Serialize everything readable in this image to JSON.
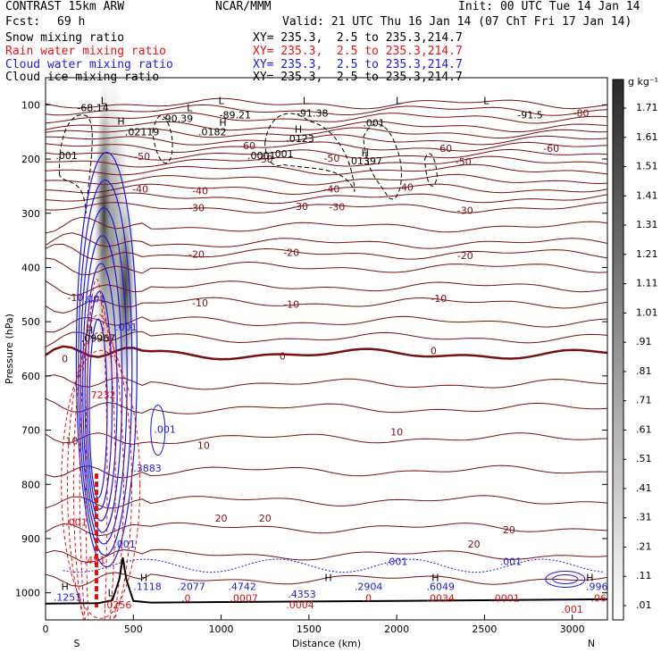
{
  "header": {
    "model": "CONTRAST 15km ARW",
    "org": "NCAR/MMM",
    "init": "Init: 00 UTC Tue 14 Jan 14",
    "fcst_label": "Fcst:",
    "fcst_value": "69 h",
    "valid": "Valid: 21 UTC Thu 16 Jan 14 (07 ChT Fri 17 Jan 14)"
  },
  "legend": [
    {
      "label": "Snow mixing ratio",
      "xy": "XY= 235.3,  2.5 to 235.3,214.7",
      "color": "#000000"
    },
    {
      "label": "Rain water mixing ratio",
      "xy": "XY= 235.3,  2.5 to 235.3,214.7",
      "color": "#e01010"
    },
    {
      "label": "Cloud water mixing ratio",
      "xy": "XY= 235.3,  2.5 to 235.3,214.7",
      "color": "#1a1ae6"
    },
    {
      "label": "Cloud ice mixing ratio",
      "xy": "XY= 235.3,  2.5 to 235.3,214.7",
      "color": "#000000"
    }
  ],
  "colorbar": {
    "unit": "g kg⁻¹",
    "ticks": [
      "1.71",
      "1.61",
      "1.51",
      "1.41",
      "1.31",
      "1.21",
      "1.11",
      "1.01",
      ".91",
      ".81",
      ".71",
      ".61",
      ".51",
      ".41",
      ".31",
      ".21",
      ".11",
      ".01"
    ]
  },
  "chart_data": {
    "type": "cross-section",
    "xlabel": "Distance (km)",
    "ylabel": "Pressure (hPa)",
    "xlim": [
      0,
      3200
    ],
    "ylim": [
      1050,
      50
    ],
    "x_ticks": [
      0,
      500,
      1000,
      1500,
      2000,
      2500,
      3000
    ],
    "y_ticks": [
      100,
      200,
      300,
      400,
      500,
      600,
      700,
      800,
      900,
      1000
    ],
    "end_labels": {
      "left": "S",
      "right": "N"
    },
    "temperature_contours": {
      "color": "#7a1010",
      "levels": [
        -80,
        -70,
        -60,
        -50,
        -40,
        -30,
        -20,
        -10,
        0,
        10,
        20
      ],
      "labels": [
        {
          "text": "-80",
          "x": 3050,
          "p": 115
        },
        {
          "text": "-60",
          "x": 2880,
          "p": 180
        },
        {
          "text": "-60",
          "x": 1150,
          "p": 175
        },
        {
          "text": "-60",
          "x": 2270,
          "p": 180
        },
        {
          "text": "-50",
          "x": 550,
          "p": 195
        },
        {
          "text": "-50",
          "x": 1250,
          "p": 200
        },
        {
          "text": "-50",
          "x": 1630,
          "p": 198
        },
        {
          "text": "-50",
          "x": 2380,
          "p": 205
        },
        {
          "text": "-40",
          "x": 540,
          "p": 255
        },
        {
          "text": "-40",
          "x": 880,
          "p": 258
        },
        {
          "text": "-40",
          "x": 1630,
          "p": 255
        },
        {
          "text": "-40",
          "x": 2050,
          "p": 252
        },
        {
          "text": "-30",
          "x": 860,
          "p": 290
        },
        {
          "text": "-30",
          "x": 1450,
          "p": 287
        },
        {
          "text": "-30",
          "x": 1660,
          "p": 288
        },
        {
          "text": "-30",
          "x": 2390,
          "p": 295
        },
        {
          "text": "-20",
          "x": 860,
          "p": 375
        },
        {
          "text": "-20",
          "x": 1400,
          "p": 372
        },
        {
          "text": "-20",
          "x": 2390,
          "p": 378
        },
        {
          "text": "-10",
          "x": 170,
          "p": 455
        },
        {
          "text": "-10",
          "x": 880,
          "p": 465
        },
        {
          "text": "-10",
          "x": 1400,
          "p": 468
        },
        {
          "text": "-10",
          "x": 2240,
          "p": 457
        },
        {
          "text": "0",
          "x": 110,
          "p": 568
        },
        {
          "text": "0",
          "x": 1350,
          "p": 563
        },
        {
          "text": "0",
          "x": 2210,
          "p": 553
        },
        {
          "text": "10",
          "x": 150,
          "p": 720
        },
        {
          "text": "10",
          "x": 900,
          "p": 728
        },
        {
          "text": "10",
          "x": 2000,
          "p": 703
        },
        {
          "text": "20",
          "x": 1000,
          "p": 862
        },
        {
          "text": "20",
          "x": 1250,
          "p": 862
        },
        {
          "text": "20",
          "x": 2440,
          "p": 910
        },
        {
          "text": "20",
          "x": 2640,
          "p": 884
        }
      ]
    },
    "annotations": [
      {
        "text": "-68.14",
        "x": 270,
        "p": 105,
        "color": "#000"
      },
      {
        "text": "-90.39",
        "x": 750,
        "p": 125,
        "color": "#000"
      },
      {
        "text": "-89.21",
        "x": 1080,
        "p": 118,
        "color": "#000"
      },
      {
        "text": "-91.38",
        "x": 1520,
        "p": 115,
        "color": "#000"
      },
      {
        "text": "-91.5",
        "x": 2760,
        "p": 118,
        "color": "#000"
      },
      {
        "text": ".001",
        "x": 1870,
        "p": 133,
        "color": "#000"
      },
      {
        "text": ".02119",
        "x": 550,
        "p": 150,
        "color": "#000"
      },
      {
        "text": ".0182",
        "x": 950,
        "p": 150,
        "color": "#000"
      },
      {
        "text": ".0123",
        "x": 1450,
        "p": 162,
        "color": "#000"
      },
      {
        "text": ".001",
        "x": 1350,
        "p": 190,
        "color": "#000"
      },
      {
        "text": ".01397",
        "x": 1820,
        "p": 203,
        "color": "#000"
      },
      {
        "text": ".001",
        "x": 120,
        "p": 193,
        "color": "#000"
      },
      {
        "text": ".0001",
        "x": 1230,
        "p": 193,
        "color": "#000"
      },
      {
        "text": ".09967",
        "x": 300,
        "p": 530,
        "color": "#000"
      },
      {
        "text": ".001",
        "x": 280,
        "p": 458,
        "color": "#1a1ae6"
      },
      {
        "text": ".001",
        "x": 460,
        "p": 510,
        "color": "#1a1ae6"
      },
      {
        "text": ".001",
        "x": 680,
        "p": 698,
        "color": "#1a1ae6"
      },
      {
        "text": ".3883",
        "x": 580,
        "p": 770,
        "color": "#1a1ae6"
      },
      {
        "text": ".7232",
        "x": 320,
        "p": 635,
        "color": "#e01010"
      },
      {
        "text": ".001",
        "x": 175,
        "p": 870,
        "color": "#e01010"
      },
      {
        "text": ".451",
        "x": 280,
        "p": 940,
        "color": "#e01010"
      },
      {
        "text": ".001",
        "x": 450,
        "p": 910,
        "color": "#1a1ae6"
      },
      {
        "text": ".1251",
        "x": 125,
        "p": 1008,
        "color": "#1a1ae6"
      },
      {
        "text": ".0256",
        "x": 410,
        "p": 1022,
        "color": "#e01010"
      },
      {
        "text": ".1118",
        "x": 580,
        "p": 988,
        "color": "#1a1ae6"
      },
      {
        "text": ".2077",
        "x": 830,
        "p": 988,
        "color": "#1a1ae6"
      },
      {
        "text": ".0",
        "x": 800,
        "p": 1010,
        "color": "#e01010"
      },
      {
        "text": ".4742",
        "x": 1120,
        "p": 988,
        "color": "#1a1ae6"
      },
      {
        "text": ".0007",
        "x": 1130,
        "p": 1010,
        "color": "#e01010"
      },
      {
        "text": ".4353",
        "x": 1460,
        "p": 1002,
        "color": "#1a1ae6"
      },
      {
        "text": ".0004",
        "x": 1450,
        "p": 1022,
        "color": "#e01010"
      },
      {
        "text": ".2904",
        "x": 1840,
        "p": 988,
        "color": "#1a1ae6"
      },
      {
        "text": ".0",
        "x": 1830,
        "p": 1010,
        "color": "#e01010"
      },
      {
        "text": ".001",
        "x": 2000,
        "p": 942,
        "color": "#1a1ae6"
      },
      {
        "text": ".6049",
        "x": 2250,
        "p": 988,
        "color": "#1a1ae6"
      },
      {
        "text": ".0034",
        "x": 2250,
        "p": 1010,
        "color": "#e01010"
      },
      {
        "text": ".001",
        "x": 2650,
        "p": 942,
        "color": "#1a1ae6"
      },
      {
        "text": ".0001",
        "x": 2620,
        "p": 1010,
        "color": "#e01010"
      },
      {
        "text": ".001",
        "x": 3000,
        "p": 1030,
        "color": "#e01010"
      },
      {
        "text": ".996",
        "x": 3140,
        "p": 988,
        "color": "#1a1ae6"
      },
      {
        "text": ".06",
        "x": 3150,
        "p": 1010,
        "color": "#e01010"
      }
    ],
    "extrema_labels": [
      {
        "text": "H",
        "x": 430,
        "p": 130
      },
      {
        "text": "H",
        "x": 1010,
        "p": 132
      },
      {
        "text": "H",
        "x": 1440,
        "p": 145
      },
      {
        "text": "H",
        "x": 1820,
        "p": 188
      },
      {
        "text": "L",
        "x": 330,
        "p": 92
      },
      {
        "text": "L",
        "x": 820,
        "p": 105
      },
      {
        "text": "L",
        "x": 1000,
        "p": 92
      },
      {
        "text": "L",
        "x": 1480,
        "p": 92
      },
      {
        "text": "L",
        "x": 2010,
        "p": 92
      },
      {
        "text": "L",
        "x": 2510,
        "p": 92
      },
      {
        "text": "H",
        "x": 250,
        "p": 515
      },
      {
        "text": "H",
        "x": 110,
        "p": 988
      },
      {
        "text": "H",
        "x": 560,
        "p": 972
      },
      {
        "text": "H",
        "x": 1610,
        "p": 972
      },
      {
        "text": "H",
        "x": 2220,
        "p": 972
      },
      {
        "text": "H",
        "x": 3100,
        "p": 972
      },
      {
        "text": "L",
        "x": 370,
        "p": 1000
      }
    ],
    "shaded_field": {
      "name": "Snow mixing ratio",
      "peak_value": 1.71,
      "units": "g kg-1",
      "location_km": [
        330,
        520
      ],
      "pressure_range": [
        130,
        560
      ]
    },
    "surface_pressure": {
      "x": [
        0,
        300,
        380,
        420,
        440,
        460,
        500,
        600,
        1000,
        2000,
        2800,
        3200
      ],
      "p": [
        1020,
        1019,
        1014,
        975,
        935,
        975,
        1015,
        1018,
        1017,
        1015,
        1013,
        1012
      ]
    }
  }
}
